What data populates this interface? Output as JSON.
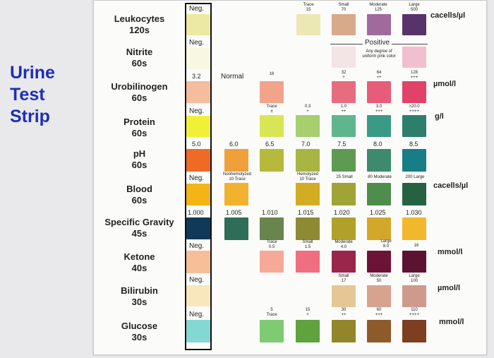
{
  "title": [
    "Urine",
    "Test",
    "Strip"
  ],
  "strip_values": {
    "leukocytes": "Neg.",
    "nitrite": "Neg.",
    "urobilinogen": "3.2",
    "protein": "Neg.",
    "ph": "5.0",
    "blood": "Neg.",
    "specific_gravity": "1.000",
    "ketone": "Neg.",
    "bilirubin": "Neg.",
    "glucose": "Neg."
  },
  "rows": [
    {
      "name": "Leukocytes",
      "time": "120s"
    },
    {
      "name": "Nitrite",
      "time": "60s"
    },
    {
      "name": "Urobilinogen",
      "time": "60s"
    },
    {
      "name": "Protein",
      "time": "60s"
    },
    {
      "name": "pH",
      "time": "60s"
    },
    {
      "name": "Blood",
      "time": "60s"
    },
    {
      "name": "Specific Gravity",
      "time": "45s"
    },
    {
      "name": "Ketone",
      "time": "40s"
    },
    {
      "name": "Bilirubin",
      "time": "30s"
    },
    {
      "name": "Glucose",
      "time": "30s"
    }
  ],
  "units": {
    "leukocytes": "cacells/µl",
    "urobilinogen": "µmol/l",
    "protein": "g/l",
    "blood": "cacells/µl",
    "ketone": "mmol/l",
    "bilirubin": "µmol/l",
    "glucose": "mmol/l"
  },
  "leukocytes": {
    "labels": [
      [
        "Trace",
        "15"
      ],
      [
        "Small",
        "70"
      ],
      [
        "Moderate",
        "125"
      ],
      [
        "Large",
        "500"
      ]
    ],
    "colors": [
      "#ece8b4",
      "#d9a98c",
      "#a06a9c",
      "#57336a"
    ]
  },
  "nitrite": {
    "positive": "Positive",
    "note": [
      "Any degree of",
      "uniform pink color"
    ],
    "colors": [
      "#f3e4e6",
      "#f1bfcf"
    ]
  },
  "urobilinogen": {
    "normal": "Normal",
    "labels": [
      [
        "16",
        ""
      ],
      [
        "32",
        "+"
      ],
      [
        "64",
        "++"
      ],
      [
        "128",
        "+++"
      ]
    ],
    "colors": [
      "#f2a48a",
      "#e86c80",
      "#e65c7a",
      "#e04268"
    ]
  },
  "protein": {
    "labels": [
      [
        "Trace",
        "±"
      ],
      [
        "0.3",
        "+"
      ],
      [
        "1.0",
        "++"
      ],
      [
        "3.0",
        "+++"
      ],
      [
        ">20.0",
        "++++"
      ]
    ],
    "colors": [
      "#d8e655",
      "#a6cf6e",
      "#5fb68c",
      "#3a9a86",
      "#2e7e6c"
    ]
  },
  "ph": {
    "labels": [
      "6.0",
      "6.5",
      "7.0",
      "7.5",
      "8.0",
      "8.5"
    ],
    "colors": [
      "#f0a03a",
      "#b7b93c",
      "#a7b542",
      "#5f9a52",
      "#3d8a6e",
      "#177d86"
    ]
  },
  "blood": {
    "labels": [
      [
        "Nonhemolyzed",
        "10 Trace"
      ],
      [
        "Hemolyzed",
        "10 Trace"
      ],
      [
        "25 Small",
        ""
      ],
      [
        "80 Moderate",
        ""
      ],
      [
        "200 Large",
        ""
      ]
    ],
    "colors": [
      "#f1b32e",
      "#d2ad23",
      "#a0a335",
      "#4f8d4c",
      "#266142"
    ]
  },
  "specific_gravity": {
    "labels": [
      "1.005",
      "1.010",
      "1.015",
      "1.020",
      "1.025",
      "1.030"
    ],
    "colors": [
      "#2e6e59",
      "#68854e",
      "#8e8a34",
      "#b1a02a",
      "#d3a82a",
      "#f0b82a"
    ]
  },
  "ketone": {
    "labels": [
      [
        "Trace",
        "0.5"
      ],
      [
        "Small",
        "1.5"
      ],
      [
        "Moderate",
        "4.0"
      ],
      [
        "Large",
        "8.0"
      ],
      [
        "",
        "16"
      ]
    ],
    "colors": [
      "#f5a996",
      "#ef6f80",
      "#9a264c",
      "#6e1338",
      "#5c1330"
    ]
  },
  "bilirubin": {
    "labels": [
      [
        "Small",
        "17"
      ],
      [
        "Moderate",
        "50"
      ],
      [
        "Large",
        "100"
      ]
    ],
    "colors": [
      "#e7c696",
      "#d7a38e",
      "#cd9a8c"
    ]
  },
  "glucose": {
    "labels": [
      [
        "5",
        "Trace"
      ],
      [
        "15",
        "+"
      ],
      [
        "30",
        "++"
      ],
      [
        "60",
        "+++"
      ],
      [
        "110",
        "++++"
      ]
    ],
    "colors": [
      "#7fcb71",
      "#5fa23e",
      "#93852a",
      "#8f5a2a",
      "#7d3f20"
    ]
  },
  "strip_colors": [
    "#ebe9a4",
    "#f7f7e2",
    "#f4bd9d",
    "#f1ef36",
    "#f06a26",
    "#f4b416",
    "#0f3956",
    "#f7bf98",
    "#f8e6bc",
    "#84d8d3"
  ]
}
